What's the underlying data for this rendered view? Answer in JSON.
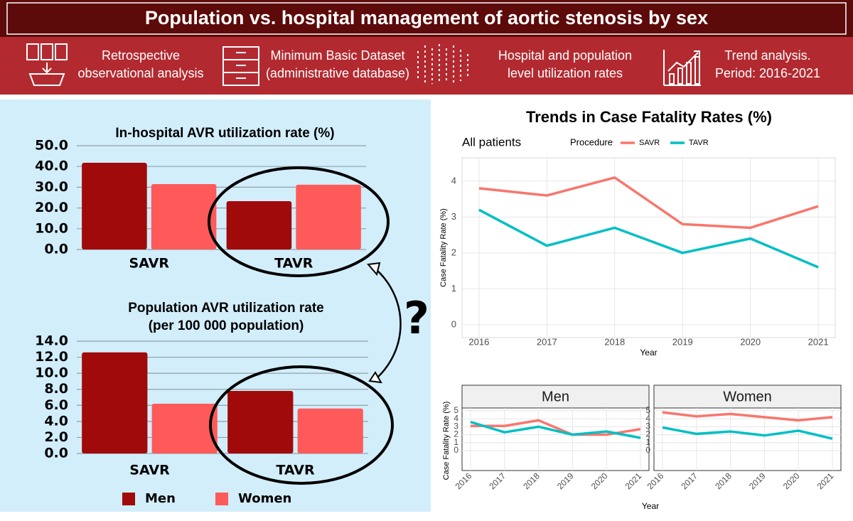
{
  "header": {
    "title": "Population vs. hospital management of aortic stenosis by sex",
    "items": [
      [
        "Retrospective",
        "observational analysis"
      ],
      [
        "Minimum Basic Dataset",
        "(administrative database)"
      ],
      [
        "Hospital and population",
        "level utilization rates"
      ],
      [
        "Trend analysis.",
        "Period: 2016-2021"
      ]
    ]
  },
  "annotation": "?",
  "chart_data": [
    {
      "type": "bar",
      "title": "In-hospital AVR utilization rate (%)",
      "categories": [
        "SAVR",
        "TAVR"
      ],
      "series": [
        {
          "color": "#a00a0a",
          "values": [
            41.8,
            23.3
          ]
        },
        {
          "color": "#ff5a5a",
          "values": [
            31.5,
            31.2
          ]
        }
      ],
      "ylim": [
        0,
        50
      ],
      "yticks": [
        {
          "value": 0,
          "label": "0.0"
        },
        {
          "value": 10,
          "label": "10.0"
        },
        {
          "value": 20,
          "label": "20.0"
        },
        {
          "value": 30,
          "label": "30.0"
        },
        {
          "value": 40,
          "label": "40.0"
        },
        {
          "value": 50,
          "label": "50.0"
        }
      ],
      "grid": true
    },
    {
      "type": "bar",
      "title": "Population AVR utilization rate",
      "subtitle": "(per 100 000 population)",
      "categories": [
        "SAVR",
        "TAVR"
      ],
      "series": [
        {
          "name": "Men",
          "color": "#a00a0a",
          "values": [
            12.6,
            7.8
          ]
        },
        {
          "name": "Women",
          "color": "#ff5a5a",
          "values": [
            6.2,
            5.6
          ]
        }
      ],
      "ylim": [
        0,
        14
      ],
      "yticks": [
        {
          "value": 0,
          "label": "0.0"
        },
        {
          "value": 2,
          "label": "2.0"
        },
        {
          "value": 4,
          "label": "4.0"
        },
        {
          "value": 6,
          "label": "6.0"
        },
        {
          "value": 8,
          "label": "8.0"
        },
        {
          "value": 10,
          "label": "10.0"
        },
        {
          "value": 12,
          "label": "12.0"
        },
        {
          "value": 14,
          "label": "14.0"
        }
      ],
      "grid": true,
      "legend": "bottom"
    },
    {
      "type": "line",
      "title": "Trends in Case Fatality Rates (%)",
      "subtitle": "All patients",
      "legend_title": "Procedure",
      "x": [
        2016,
        2017,
        2018,
        2019,
        2020,
        2021
      ],
      "series": [
        {
          "name": "SAVR",
          "color": "#f8766d",
          "values": [
            3.8,
            3.6,
            4.1,
            2.8,
            2.7,
            3.3
          ]
        },
        {
          "name": "TAVR",
          "color": "#00bfc4",
          "values": [
            3.2,
            2.2,
            2.7,
            2.0,
            2.4,
            1.6
          ]
        }
      ],
      "xlim": [
        2015.75,
        2021.25
      ],
      "xticks": [
        2016,
        2017,
        2018,
        2019,
        2020,
        2021
      ],
      "ylim": [
        -0.36,
        4.65
      ],
      "yticks": [
        0,
        1,
        2,
        3,
        4
      ],
      "xlabel": "Year",
      "ylabel": "Case Fatality Rate (%)",
      "grid": true
    },
    {
      "type": "line",
      "title": "Men",
      "x": [
        2016,
        2017,
        2018,
        2019,
        2020,
        2021
      ],
      "series": [
        {
          "color": "#f8766d",
          "values": [
            3.1,
            3.1,
            3.8,
            2.0,
            2.0,
            2.7
          ]
        },
        {
          "color": "#00bfc4",
          "values": [
            3.6,
            2.3,
            3.0,
            2.0,
            2.4,
            1.6
          ]
        }
      ],
      "xlim": [
        2015.75,
        2021.25
      ],
      "xticks": [
        2016,
        2017,
        2018,
        2019,
        2020,
        2021
      ],
      "ylim": [
        -2.5,
        5.35
      ],
      "yticks": [
        0,
        1,
        2,
        3,
        4,
        5
      ],
      "xlabel": "Year",
      "ylabel": "Case Fatality Rate (%)",
      "grid": true
    },
    {
      "type": "line",
      "title": "Women",
      "x": [
        2016,
        2017,
        2018,
        2019,
        2020,
        2021
      ],
      "series": [
        {
          "color": "#f8766d",
          "values": [
            4.8,
            4.3,
            4.6,
            4.2,
            3.8,
            4.2
          ]
        },
        {
          "color": "#00bfc4",
          "values": [
            2.9,
            2.1,
            2.4,
            1.9,
            2.5,
            1.5
          ]
        }
      ],
      "xlim": [
        2015.75,
        2021.25
      ],
      "xticks": [
        2016,
        2017,
        2018,
        2019,
        2020,
        2021
      ],
      "ylim": [
        -2.5,
        5.35
      ],
      "yticks": [
        0,
        1,
        2,
        3,
        4,
        5
      ],
      "grid": true
    }
  ]
}
